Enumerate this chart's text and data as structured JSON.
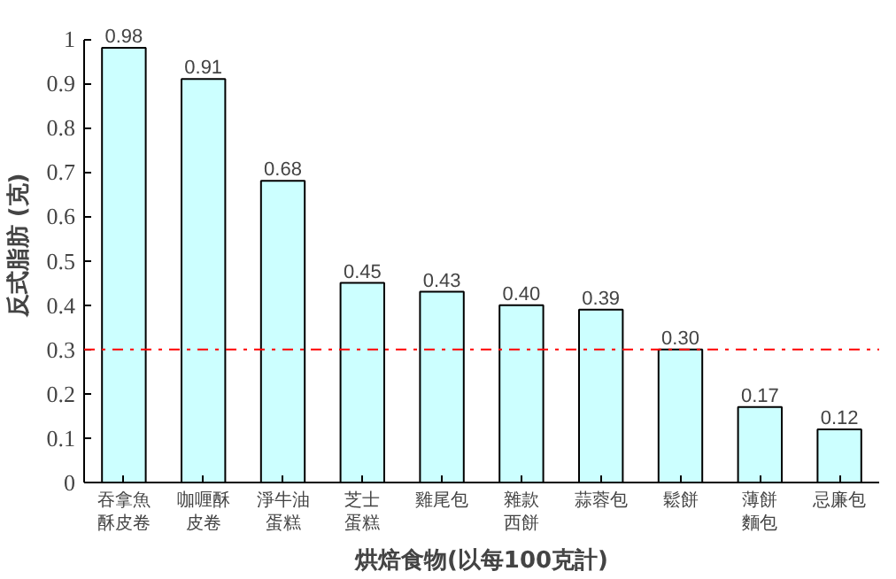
{
  "chart_data": {
    "type": "bar",
    "xlabel": "烘焙食物(以每100克計)",
    "ylabel": "反式脂肪 (克)",
    "categories": [
      "吞拿魚酥皮卷",
      "咖喱酥皮卷",
      "淨牛油蛋糕",
      "芝士蛋糕",
      "雞尾包",
      "雜款西餅",
      "蒜蓉包",
      "鬆餅",
      "薄餅麵包",
      "忌廉包"
    ],
    "values": [
      0.98,
      0.91,
      0.68,
      0.45,
      0.43,
      0.4,
      0.39,
      0.3,
      0.17,
      0.12
    ],
    "value_labels": [
      "0.98",
      "0.91",
      "0.68",
      "0.45",
      "0.43",
      "0.40",
      "0.39",
      "0.30",
      "0.17",
      "0.12"
    ],
    "color": "#ccffff",
    "ylim": [
      0,
      1
    ],
    "yticks": [
      0,
      0.1,
      0.2,
      0.3,
      0.4,
      0.5,
      0.6,
      0.7,
      0.8,
      0.9,
      1
    ],
    "ref_lines": [
      {
        "axis": "y",
        "value": 0.3,
        "color": "#ff0000",
        "line_style": "dashdot"
      }
    ],
    "grid": false
  }
}
